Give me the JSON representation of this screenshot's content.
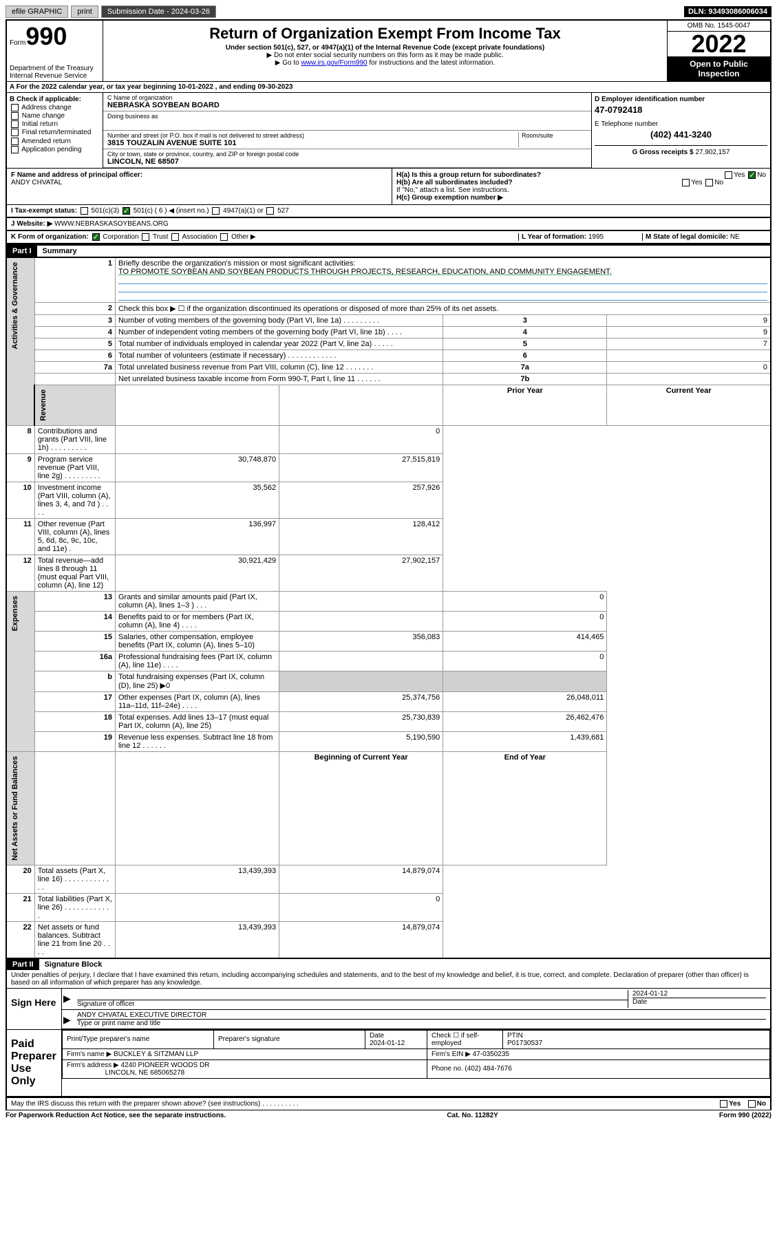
{
  "topbar": {
    "efile": "efile GRAPHIC",
    "print": "print",
    "sub_label": "Submission Date - ",
    "sub_date": "2024-03-26",
    "dln": "DLN: 93493086006034"
  },
  "header": {
    "form_word": "Form",
    "form_num": "990",
    "dept": "Department of the Treasury",
    "irs": "Internal Revenue Service",
    "title": "Return of Organization Exempt From Income Tax",
    "sub1": "Under section 501(c), 527, or 4947(a)(1) of the Internal Revenue Code (except private foundations)",
    "sub2": "▶ Do not enter social security numbers on this form as it may be made public.",
    "sub3_pre": "▶ Go to ",
    "sub3_link": "www.irs.gov/Form990",
    "sub3_post": " for instructions and the latest information.",
    "omb": "OMB No. 1545-0047",
    "year": "2022",
    "open": "Open to Public Inspection"
  },
  "row_a": "A For the 2022 calendar year, or tax year beginning 10-01-2022    , and ending 09-30-2023",
  "col_b": {
    "hdr": "B Check if applicable:",
    "items": [
      "Address change",
      "Name change",
      "Initial return",
      "Final return/terminated",
      "Amended return",
      "Application pending"
    ]
  },
  "col_c": {
    "name_lbl": "C Name of organization",
    "name": "NEBRASKA SOYBEAN BOARD",
    "dba_lbl": "Doing business as",
    "dba": "",
    "street_lbl": "Number and street (or P.O. box if mail is not delivered to street address)",
    "room_lbl": "Room/suite",
    "street": "3815 TOUZALIN AVENUE SUITE 101",
    "city_lbl": "City or town, state or province, country, and ZIP or foreign postal code",
    "city": "LINCOLN, NE  68507"
  },
  "col_d": {
    "ein_lbl": "D Employer identification number",
    "ein": "47-0792418",
    "tel_lbl": "E Telephone number",
    "tel": "(402) 441-3240",
    "gross_lbl": "G Gross receipts $ ",
    "gross": "27,902,157"
  },
  "row_f": {
    "lbl": "F Name and address of principal officer:",
    "val": "ANDY CHVATAL"
  },
  "row_h": {
    "ha": "H(a)  Is this a group return for subordinates?",
    "hb": "H(b)  Are all subordinates included?",
    "hb_note": "If \"No,\" attach a list. See instructions.",
    "hc": "H(c)  Group exemption number ▶",
    "yes": "Yes",
    "no": "No"
  },
  "row_i": {
    "lbl": "I   Tax-exempt status:",
    "o1": "501(c)(3)",
    "o2": "501(c) ( 6 ) ◀ (insert no.)",
    "o3": "4947(a)(1) or",
    "o4": "527"
  },
  "row_j": {
    "lbl": "J   Website: ▶",
    "val": "WWW.NEBRASKASOYBEANS.ORG"
  },
  "row_k": {
    "lbl": "K Form of organization:",
    "opts": [
      "Corporation",
      "Trust",
      "Association",
      "Other ▶"
    ],
    "l_lbl": "L Year of formation: ",
    "l_val": "1995",
    "m_lbl": "M State of legal domicile: ",
    "m_val": "NE"
  },
  "part1": {
    "hdr": "Part I",
    "title": "Summary",
    "tab_ag": "Activities & Governance",
    "tab_rev": "Revenue",
    "tab_exp": "Expenses",
    "tab_na": "Net Assets or Fund Balances",
    "l1_lbl": "Briefly describe the organization's mission or most significant activities:",
    "l1_val": "TO PROMOTE SOYBEAN AND SOYBEAN PRODUCTS THROUGH PROJECTS, RESEARCH, EDUCATION, AND COMMUNITY ENGAGEMENT.",
    "l2": "Check this box ▶ ☐  if the organization discontinued its operations or disposed of more than 25% of its net assets.",
    "rows_ag": [
      {
        "n": "3",
        "t": "Number of voting members of the governing body (Part VI, line 1a)   .    .    .    .    .    .    .    .    .",
        "b": "3",
        "v": "9"
      },
      {
        "n": "4",
        "t": "Number of independent voting members of the governing body (Part VI, line 1b)    .    .    .    .",
        "b": "4",
        "v": "9"
      },
      {
        "n": "5",
        "t": "Total number of individuals employed in calendar year 2022 (Part V, line 2a)    .    .    .    .    .",
        "b": "5",
        "v": "7"
      },
      {
        "n": "6",
        "t": "Total number of volunteers (estimate if necessary)    .    .    .    .    .    .    .    .    .    .    .    .",
        "b": "6",
        "v": ""
      },
      {
        "n": "7a",
        "t": "Total unrelated business revenue from Part VIII, column (C), line 12    .    .    .    .    .    .    .",
        "b": "7a",
        "v": "0"
      },
      {
        "n": "",
        "t": "Net unrelated business taxable income from Form 990-T, Part I, line 11    .    .    .    .    .    .",
        "b": "7b",
        "v": ""
      }
    ],
    "col_prior": "Prior Year",
    "col_curr": "Current Year",
    "rows_rev": [
      {
        "n": "8",
        "t": "Contributions and grants (Part VIII, line 1h)    .    .    .    .    .    .    .    .    .",
        "p": "",
        "c": "0"
      },
      {
        "n": "9",
        "t": "Program service revenue (Part VIII, line 2g)    .    .    .    .    .    .    .    .    .",
        "p": "30,748,870",
        "c": "27,515,819"
      },
      {
        "n": "10",
        "t": "Investment income (Part VIII, column (A), lines 3, 4, and 7d )    .    .    .    .",
        "p": "35,562",
        "c": "257,926"
      },
      {
        "n": "11",
        "t": "Other revenue (Part VIII, column (A), lines 5, 6d, 8c, 9c, 10c, and 11e)    .",
        "p": "136,997",
        "c": "128,412"
      },
      {
        "n": "12",
        "t": "Total revenue—add lines 8 through 11 (must equal Part VIII, column (A), line 12)",
        "p": "30,921,429",
        "c": "27,902,157"
      }
    ],
    "rows_exp": [
      {
        "n": "13",
        "t": "Grants and similar amounts paid (Part IX, column (A), lines 1–3 )    .    .    .",
        "p": "",
        "c": "0"
      },
      {
        "n": "14",
        "t": "Benefits paid to or for members (Part IX, column (A), line 4)    .    .    .    .",
        "p": "",
        "c": "0"
      },
      {
        "n": "15",
        "t": "Salaries, other compensation, employee benefits (Part IX, column (A), lines 5–10)",
        "p": "356,083",
        "c": "414,465"
      },
      {
        "n": "16a",
        "t": "Professional fundraising fees (Part IX, column (A), line 11e)    .    .    .    .",
        "p": "",
        "c": "0"
      },
      {
        "n": "b",
        "t": "Total fundraising expenses (Part IX, column (D), line 25) ▶0",
        "p": "",
        "c": "",
        "shade": true
      },
      {
        "n": "17",
        "t": "Other expenses (Part IX, column (A), lines 11a–11d, 11f–24e)    .    .    .    .",
        "p": "25,374,756",
        "c": "26,048,011"
      },
      {
        "n": "18",
        "t": "Total expenses. Add lines 13–17 (must equal Part IX, column (A), line 25)",
        "p": "25,730,839",
        "c": "26,462,476"
      },
      {
        "n": "19",
        "t": "Revenue less expenses. Subtract line 18 from line 12    .    .    .    .    .    .",
        "p": "5,190,590",
        "c": "1,439,681"
      }
    ],
    "col_beg": "Beginning of Current Year",
    "col_end": "End of Year",
    "rows_na": [
      {
        "n": "20",
        "t": "Total assets (Part X, line 16)    .    .    .    .    .    .    .    .    .    .    .    .    .",
        "p": "13,439,393",
        "c": "14,879,074"
      },
      {
        "n": "21",
        "t": "Total liabilities (Part X, line 26)    .    .    .    .    .    .    .    .    .    .    .    .",
        "p": "",
        "c": "0"
      },
      {
        "n": "22",
        "t": "Net assets or fund balances. Subtract line 21 from line 20    .    .    .    .",
        "p": "13,439,393",
        "c": "14,879,074"
      }
    ]
  },
  "part2": {
    "hdr": "Part II",
    "title": "Signature Block",
    "decl": "Under penalties of perjury, I declare that I have examined this return, including accompanying schedules and statements, and to the best of my knowledge and belief, it is true, correct, and complete. Declaration of preparer (other than officer) is based on all information of which preparer has any knowledge.",
    "sign_here": "Sign Here",
    "sig_officer_lbl": "Signature of officer",
    "sig_date_lbl": "Date",
    "sig_date": "2024-01-12",
    "sig_name_lbl": "Type or print name and title",
    "sig_name": "ANDY CHVATAL EXECUTIVE DIRECTOR",
    "paid": "Paid Preparer Use Only",
    "prep_name_lbl": "Print/Type preparer's name",
    "prep_sig_lbl": "Preparer's signature",
    "prep_date_lbl": "Date",
    "prep_date": "2024-01-12",
    "prep_check_lbl": "Check ☐ if self-employed",
    "ptin_lbl": "PTIN",
    "ptin": "P01730537",
    "firm_name_lbl": "Firm's name      ▶",
    "firm_name": "BUCKLEY & SITZMAN LLP",
    "firm_ein_lbl": "Firm's EIN ▶",
    "firm_ein": "47-0350235",
    "firm_addr_lbl": "Firm's address ▶",
    "firm_addr1": "4240 PIONEER WOODS DR",
    "firm_addr2": "LINCOLN, NE  685065278",
    "firm_phone_lbl": "Phone no. ",
    "firm_phone": "(402) 484-7676",
    "discuss": "May the IRS discuss this return with the preparer shown above? (see instructions)    .    .    .    .    .    .    .    .    .    .",
    "yes": "Yes",
    "no": "No"
  },
  "footer": {
    "l": "For Paperwork Reduction Act Notice, see the separate instructions.",
    "c": "Cat. No. 11282Y",
    "r": "Form 990 (2022)"
  }
}
